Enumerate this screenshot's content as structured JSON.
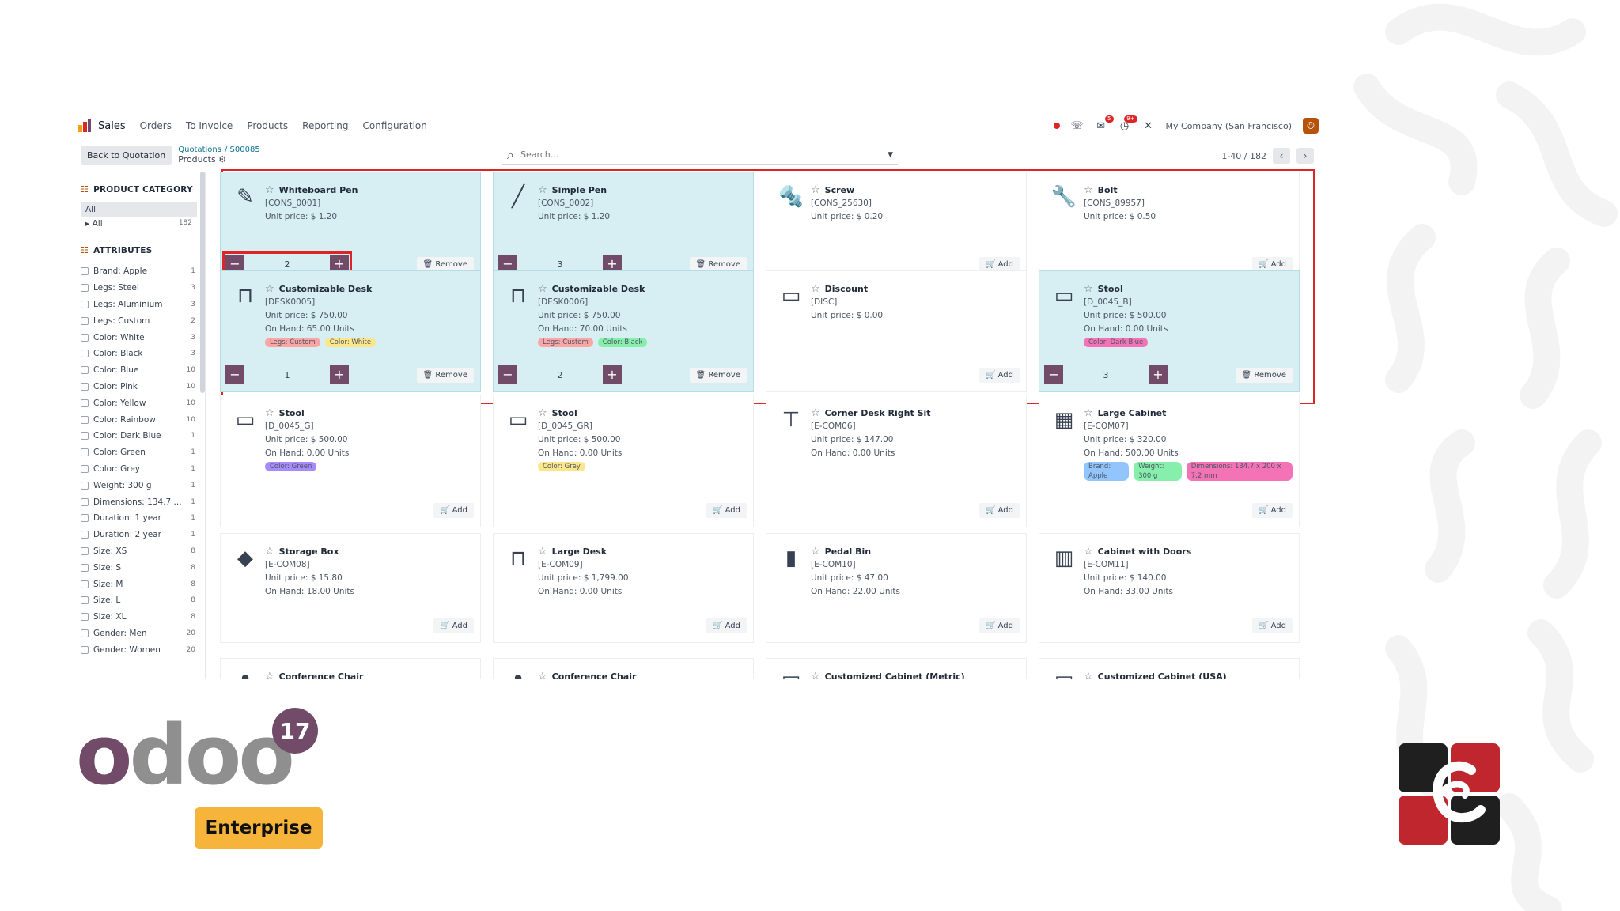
{
  "topbar": {
    "app_name": "Sales",
    "menu": [
      "Orders",
      "To Invoice",
      "Products",
      "Reporting",
      "Configuration"
    ],
    "company": "My Company (San Francisco)",
    "badges": {
      "messages": "5",
      "activities": "9+"
    }
  },
  "control": {
    "back_label": "Back to Quotation",
    "breadcrumb": [
      "Quotations",
      "S00085"
    ],
    "current": "Products",
    "search_placeholder": "Search...",
    "pager": "1-40 / 182"
  },
  "sidebar": {
    "category_title": "PRODUCT CATEGORY",
    "categories": [
      {
        "label": "All",
        "count": ""
      },
      {
        "label": "▸ All",
        "count": "182"
      }
    ],
    "attributes_title": "ATTRIBUTES",
    "attributes": [
      {
        "label": "Brand: Apple",
        "count": "1"
      },
      {
        "label": "Legs: Steel",
        "count": "3"
      },
      {
        "label": "Legs: Aluminium",
        "count": "3"
      },
      {
        "label": "Legs: Custom",
        "count": "2"
      },
      {
        "label": "Color: White",
        "count": "3"
      },
      {
        "label": "Color: Black",
        "count": "3"
      },
      {
        "label": "Color: Blue",
        "count": "10"
      },
      {
        "label": "Color: Pink",
        "count": "10"
      },
      {
        "label": "Color: Yellow",
        "count": "10"
      },
      {
        "label": "Color: Rainbow",
        "count": "10"
      },
      {
        "label": "Color: Dark Blue",
        "count": "1"
      },
      {
        "label": "Color: Green",
        "count": "1"
      },
      {
        "label": "Color: Grey",
        "count": "1"
      },
      {
        "label": "Weight: 300 g",
        "count": "1"
      },
      {
        "label": "Dimensions: 134.7 ...",
        "count": "1"
      },
      {
        "label": "Duration: 1 year",
        "count": "1"
      },
      {
        "label": "Duration: 2 year",
        "count": "1"
      },
      {
        "label": "Size: XS",
        "count": "8"
      },
      {
        "label": "Size: S",
        "count": "8"
      },
      {
        "label": "Size: M",
        "count": "8"
      },
      {
        "label": "Size: L",
        "count": "8"
      },
      {
        "label": "Size: XL",
        "count": "8"
      },
      {
        "label": "Gender: Men",
        "count": "20"
      },
      {
        "label": "Gender: Women",
        "count": "20"
      }
    ]
  },
  "products": [
    {
      "name": "Whiteboard Pen",
      "ref": "[CONS_0001]",
      "price": "Unit price: $ 1.20",
      "onhand": "",
      "tags": [],
      "qty": "2",
      "action": "Remove",
      "selected": true,
      "icon": "✎",
      "highlight": true
    },
    {
      "name": "Simple Pen",
      "ref": "[CONS_0002]",
      "price": "Unit price: $ 1.20",
      "onhand": "",
      "tags": [],
      "qty": "3",
      "action": "Remove",
      "selected": true,
      "icon": "╱"
    },
    {
      "name": "Screw",
      "ref": "[CONS_25630]",
      "price": "Unit price: $ 0.20",
      "onhand": "",
      "tags": [],
      "qty": "",
      "action": "Add",
      "selected": false,
      "icon": "🔩"
    },
    {
      "name": "Bolt",
      "ref": "[CONS_89957]",
      "price": "Unit price: $ 0.50",
      "onhand": "",
      "tags": [],
      "qty": "",
      "action": "Add",
      "selected": false,
      "icon": "🔧"
    },
    {
      "name": "Customizable Desk",
      "ref": "[DESK0005]",
      "price": "Unit price: $ 750.00",
      "onhand": "On Hand: 65.00 Units",
      "tags": [
        {
          "t": "Legs: Custom",
          "c": "#fca5a5"
        },
        {
          "t": "Color: White",
          "c": "#fde68a"
        }
      ],
      "qty": "1",
      "action": "Remove",
      "selected": true,
      "icon": "⊓"
    },
    {
      "name": "Customizable Desk",
      "ref": "[DESK0006]",
      "price": "Unit price: $ 750.00",
      "onhand": "On Hand: 70.00 Units",
      "tags": [
        {
          "t": "Legs: Custom",
          "c": "#fca5a5"
        },
        {
          "t": "Color: Black",
          "c": "#86efac"
        }
      ],
      "qty": "2",
      "action": "Remove",
      "selected": true,
      "icon": "⊓"
    },
    {
      "name": "Discount",
      "ref": "[DISC]",
      "price": "Unit price: $ 0.00",
      "onhand": "",
      "tags": [],
      "qty": "",
      "action": "Add",
      "selected": false,
      "icon": "▭"
    },
    {
      "name": "Stool",
      "ref": "[D_0045_B]",
      "price": "Unit price: $ 500.00",
      "onhand": "On Hand: 0.00 Units",
      "tags": [
        {
          "t": "Color: Dark Blue",
          "c": "#f472b6"
        }
      ],
      "qty": "3",
      "action": "Remove",
      "selected": true,
      "icon": "▭"
    },
    {
      "name": "Stool",
      "ref": "[D_0045_G]",
      "price": "Unit price: $ 500.00",
      "onhand": "On Hand: 0.00 Units",
      "tags": [
        {
          "t": "Color: Green",
          "c": "#a78bfa"
        }
      ],
      "qty": "",
      "action": "Add",
      "selected": false,
      "icon": "▭"
    },
    {
      "name": "Stool",
      "ref": "[D_0045_GR]",
      "price": "Unit price: $ 500.00",
      "onhand": "On Hand: 0.00 Units",
      "tags": [
        {
          "t": "Color: Grey",
          "c": "#fde68a"
        }
      ],
      "qty": "",
      "action": "Add",
      "selected": false,
      "icon": "▭"
    },
    {
      "name": "Corner Desk Right Sit",
      "ref": "[E-COM06]",
      "price": "Unit price: $ 147.00",
      "onhand": "On Hand: 0.00 Units",
      "tags": [],
      "qty": "",
      "action": "Add",
      "selected": false,
      "icon": "⊤"
    },
    {
      "name": "Large Cabinet",
      "ref": "[E-COM07]",
      "price": "Unit price: $ 320.00",
      "onhand": "On Hand: 500.00 Units",
      "tags": [
        {
          "t": "Brand: Apple",
          "c": "#93c5fd"
        },
        {
          "t": "Weight: 300 g",
          "c": "#86efac"
        },
        {
          "t": "Dimensions: 134.7 x 200 x 7.2 mm",
          "c": "#f472b6"
        }
      ],
      "qty": "",
      "action": "Add",
      "selected": false,
      "icon": "▦"
    },
    {
      "name": "Storage Box",
      "ref": "[E-COM08]",
      "price": "Unit price: $ 15.80",
      "onhand": "On Hand: 18.00 Units",
      "tags": [],
      "qty": "",
      "action": "Add",
      "selected": false,
      "icon": "◆"
    },
    {
      "name": "Large Desk",
      "ref": "[E-COM09]",
      "price": "Unit price: $ 1,799.00",
      "onhand": "On Hand: 0.00 Units",
      "tags": [],
      "qty": "",
      "action": "Add",
      "selected": false,
      "icon": "⊓"
    },
    {
      "name": "Pedal Bin",
      "ref": "[E-COM10]",
      "price": "Unit price: $ 47.00",
      "onhand": "On Hand: 22.00 Units",
      "tags": [],
      "qty": "",
      "action": "Add",
      "selected": false,
      "icon": "▮"
    },
    {
      "name": "Cabinet with Doors",
      "ref": "[E-COM11]",
      "price": "Unit price: $ 140.00",
      "onhand": "On Hand: 33.00 Units",
      "tags": [],
      "qty": "",
      "action": "Add",
      "selected": false,
      "icon": "▥"
    },
    {
      "name": "Conference Chair",
      "ref": "",
      "price": "",
      "onhand": "",
      "tags": [],
      "qty": "",
      "action": "",
      "selected": false,
      "icon": "♣"
    },
    {
      "name": "Conference Chair",
      "ref": "",
      "price": "",
      "onhand": "",
      "tags": [],
      "qty": "",
      "action": "",
      "selected": false,
      "icon": "♣"
    },
    {
      "name": "Customized Cabinet (Metric)",
      "ref": "",
      "price": "",
      "onhand": "",
      "tags": [],
      "qty": "",
      "action": "",
      "selected": false,
      "icon": "▤"
    },
    {
      "name": "Customized Cabinet (USA)",
      "ref": "",
      "price": "",
      "onhand": "",
      "tags": [],
      "qty": "",
      "action": "",
      "selected": false,
      "icon": "▤"
    }
  ],
  "labels": {
    "remove_icon": "🗑",
    "add_icon": "🛒"
  },
  "branding": {
    "word": "odoo",
    "version": "17",
    "edition": "Enterprise"
  },
  "colors": {
    "primary": "#714b67",
    "selected_card": "#d7eef2",
    "highlight": "#dc2626",
    "enterprise": "#f6b53a"
  }
}
